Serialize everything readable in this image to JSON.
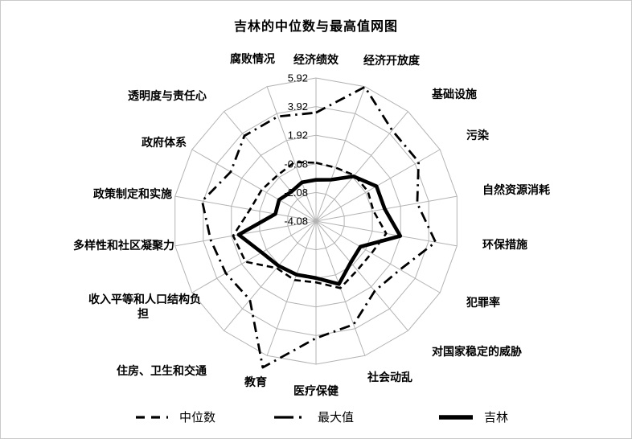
{
  "chart_data": {
    "type": "radar",
    "title": "吉林的中位数与最高值网图",
    "axis": {
      "min": -4.08,
      "max": 5.92,
      "ticks": [
        "5.92",
        "3.92",
        "1.92",
        "-0.08",
        "-2.08",
        "-4.08"
      ],
      "grid": "polygon",
      "grid_color": "#b3b3b3"
    },
    "categories": [
      "经济绩效",
      "经济开放度",
      "基础设施",
      "污染",
      "自然资源消耗",
      "环保措施",
      "犯罪率",
      "对国家稳定的威胁",
      "社会动乱",
      "医疗保健",
      "教育",
      "住房、卫生和交通",
      "收入平等和人口结构负担",
      "多样性和社区凝聚力",
      "政策制定和实施",
      "政府体系",
      "透明度与责任心",
      "腐败情况"
    ],
    "series": [
      {
        "name": "中位数",
        "line_style": "dashed",
        "color": "#000000",
        "values": [
          0.0,
          -0.1,
          0.1,
          0.1,
          0.0,
          0.9,
          0.4,
          0.4,
          0.9,
          0.2,
          0.3,
          0.2,
          1.6,
          1.8,
          0.6,
          0.3,
          0.1,
          0.3
        ]
      },
      {
        "name": "最大值",
        "line_style": "dash-dot",
        "color": "#000000",
        "values": [
          3.5,
          5.9,
          4.2,
          4.2,
          3.1,
          4.4,
          2.7,
          2.3,
          3.6,
          4.1,
          6.8,
          3.1,
          3.2,
          3.4,
          4.0,
          2.8,
          3.7,
          3.7
        ]
      },
      {
        "name": "吉林",
        "line_style": "solid",
        "color": "#000000",
        "values": [
          -1.2,
          -1.0,
          0.0,
          0.8,
          0.8,
          1.9,
          -0.5,
          -0.3,
          0.6,
          -0.1,
          -0.1,
          0.0,
          0.3,
          1.4,
          -1.2,
          -1.1,
          -1.4,
          -1.2
        ]
      }
    ],
    "legend_position": "bottom"
  }
}
